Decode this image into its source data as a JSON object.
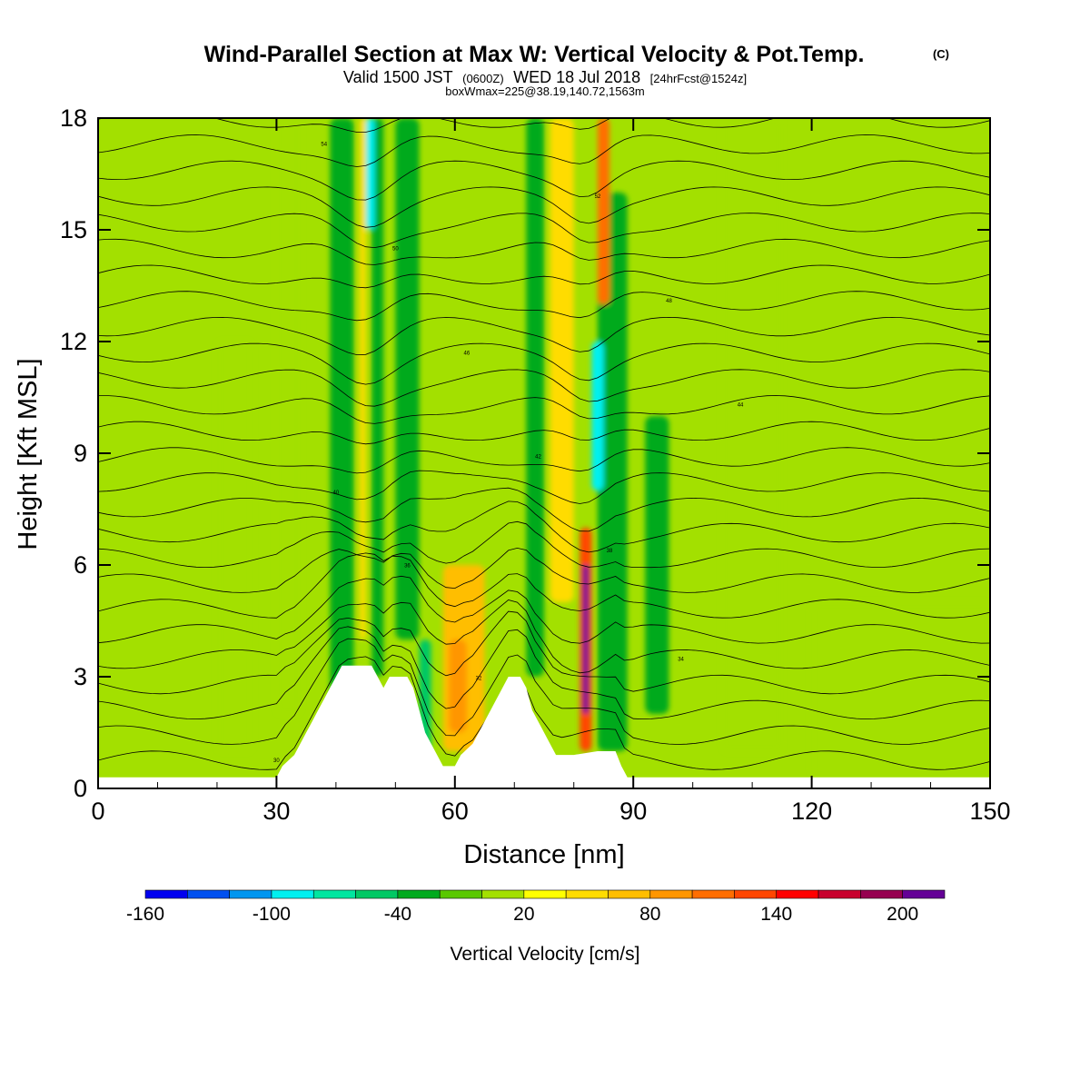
{
  "header": {
    "title": "Wind-Parallel Section at Max W: Vertical Velocity & Pot.Temp.",
    "copyright": "(C)",
    "valid_prefix": "Valid 1500 JST",
    "valid_zulu": "(0600Z)",
    "valid_date": "WED 18 Jul 2018",
    "forecast": "[24hrFcst@1524z]",
    "box_info": "boxWmax=225@38.19,140.72,1563m"
  },
  "colors": {
    "background_field": "#a3e000",
    "plot_frame": "#000000",
    "terrain": "#ffffff"
  },
  "chart_data": {
    "type": "heatmap",
    "xlabel": "Distance [nm]",
    "ylabel": "Height [Kft MSL]",
    "xlim": [
      0,
      150
    ],
    "ylim": [
      0,
      18
    ],
    "x_ticks": [
      0,
      30,
      60,
      90,
      120,
      150
    ],
    "y_ticks": [
      0,
      3,
      6,
      9,
      12,
      15,
      18
    ],
    "colorbar": {
      "label": "Vertical Velocity [cm/s]",
      "tick_labels": [
        "-160",
        "-100",
        "-40",
        "20",
        "80",
        "140",
        "200"
      ],
      "tick_values": [
        -160,
        -100,
        -40,
        20,
        80,
        140,
        200
      ],
      "min": -160,
      "max": 220,
      "step": 20,
      "colors": [
        "#0000f0",
        "#0050f0",
        "#0096f0",
        "#00f0f0",
        "#00e6a0",
        "#00c864",
        "#00aa1e",
        "#5ac800",
        "#a3e000",
        "#ffff00",
        "#ffdc00",
        "#ffbe00",
        "#ff9600",
        "#ff6e00",
        "#ff4600",
        "#ff0000",
        "#c8002d",
        "#960050",
        "#640096"
      ]
    },
    "terrain_kft": [
      [
        0,
        0.3
      ],
      [
        30,
        0.3
      ],
      [
        31,
        0.6
      ],
      [
        33,
        0.9
      ],
      [
        34,
        1.2
      ],
      [
        35,
        1.5
      ],
      [
        36,
        1.8
      ],
      [
        37,
        2.1
      ],
      [
        38,
        2.4
      ],
      [
        39,
        2.7
      ],
      [
        40,
        3.0
      ],
      [
        41,
        3.3
      ],
      [
        46,
        3.3
      ],
      [
        47,
        3.0
      ],
      [
        48,
        2.7
      ],
      [
        49,
        3.0
      ],
      [
        52,
        3.0
      ],
      [
        53,
        2.7
      ],
      [
        54,
        2.1
      ],
      [
        55,
        1.5
      ],
      [
        56,
        1.2
      ],
      [
        57,
        0.9
      ],
      [
        58,
        0.6
      ],
      [
        59,
        0.6
      ],
      [
        60,
        0.6
      ],
      [
        61,
        0.9
      ],
      [
        63,
        1.2
      ],
      [
        64,
        1.5
      ],
      [
        65,
        1.8
      ],
      [
        66,
        2.1
      ],
      [
        67,
        2.4
      ],
      [
        68,
        2.7
      ],
      [
        69,
        3.0
      ],
      [
        71,
        3.0
      ],
      [
        72,
        2.7
      ],
      [
        73,
        2.1
      ],
      [
        74,
        1.8
      ],
      [
        75,
        1.5
      ],
      [
        76,
        1.2
      ],
      [
        77,
        0.9
      ],
      [
        78,
        0.9
      ],
      [
        80,
        0.9
      ],
      [
        84,
        1.0
      ],
      [
        87,
        1.0
      ],
      [
        88,
        0.6
      ],
      [
        89,
        0.3
      ],
      [
        150,
        0.3
      ]
    ],
    "vertical_velocity_cells": [
      {
        "x": [
          39,
          43
        ],
        "y": [
          2,
          18
        ],
        "value": -40
      },
      {
        "x": [
          46,
          48
        ],
        "y": [
          3,
          18
        ],
        "value": -40
      },
      {
        "x": [
          50,
          54
        ],
        "y": [
          4,
          18
        ],
        "value": -40
      },
      {
        "x": [
          54,
          56
        ],
        "y": [
          1,
          4
        ],
        "value": -60
      },
      {
        "x": [
          72,
          75
        ],
        "y": [
          3,
          18
        ],
        "value": -40
      },
      {
        "x": [
          84,
          89
        ],
        "y": [
          1,
          16
        ],
        "value": -40
      },
      {
        "x": [
          92,
          96
        ],
        "y": [
          2,
          10
        ],
        "value": -40
      },
      {
        "x": [
          30,
          34
        ],
        "y": [
          2,
          18
        ],
        "value": 0
      },
      {
        "x": [
          20,
          26
        ],
        "y": [
          1,
          12
        ],
        "value": 0
      },
      {
        "x": [
          105,
          115
        ],
        "y": [
          1,
          18
        ],
        "value": 0
      },
      {
        "x": [
          120,
          150
        ],
        "y": [
          0.3,
          5
        ],
        "value": 0
      },
      {
        "x": [
          44,
          45
        ],
        "y": [
          4,
          18
        ],
        "value": 40
      },
      {
        "x": [
          58,
          65
        ],
        "y": [
          1,
          6
        ],
        "value": 60
      },
      {
        "x": [
          59,
          62
        ],
        "y": [
          1.5,
          4
        ],
        "value": 80
      },
      {
        "x": [
          76,
          80
        ],
        "y": [
          5,
          18
        ],
        "value": 40
      },
      {
        "x": [
          81,
          83
        ],
        "y": [
          1,
          7
        ],
        "value": 120
      },
      {
        "x": [
          81.5,
          82.5
        ],
        "y": [
          2,
          6
        ],
        "value": 200
      },
      {
        "x": [
          83,
          85
        ],
        "y": [
          8,
          12
        ],
        "value": -100
      },
      {
        "x": [
          45,
          46.5
        ],
        "y": [
          15,
          18
        ],
        "value": -100
      },
      {
        "x": [
          84,
          86
        ],
        "y": [
          13,
          18
        ],
        "value": 100
      }
    ],
    "theta_contour_labels": [
      "30",
      "32",
      "34",
      "36",
      "38",
      "40",
      "42",
      "44",
      "46",
      "48",
      "50",
      "52",
      "54",
      "56",
      "58",
      "60"
    ]
  }
}
